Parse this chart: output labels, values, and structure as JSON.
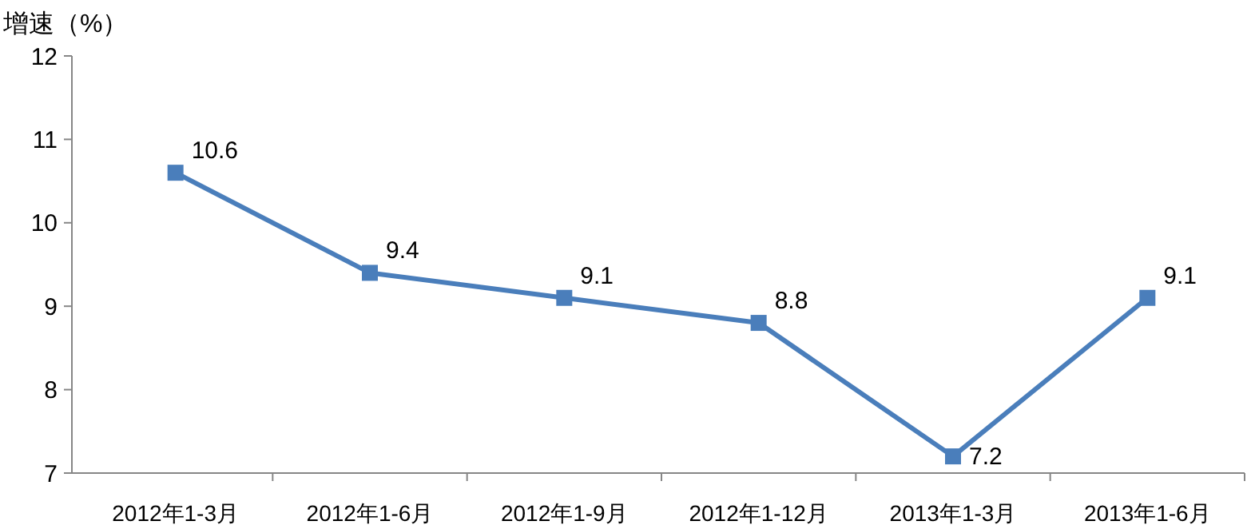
{
  "chart_data": {
    "type": "line",
    "ylabel": "增速（%）",
    "categories": [
      "2012年1-3月",
      "2012年1-6月",
      "2012年1-9月",
      "2012年1-12月",
      "2013年1-3月",
      "2013年1-6月"
    ],
    "series": [
      {
        "color": "#4a7ebb",
        "values": [
          10.6,
          9.4,
          9.1,
          8.8,
          7.2,
          9.1
        ]
      }
    ],
    "ylim": [
      7,
      12
    ],
    "yticks": [
      7,
      8,
      9,
      10,
      11,
      12
    ],
    "grid": false,
    "marker": "square",
    "line_style": "solid",
    "data_labels": true
  }
}
